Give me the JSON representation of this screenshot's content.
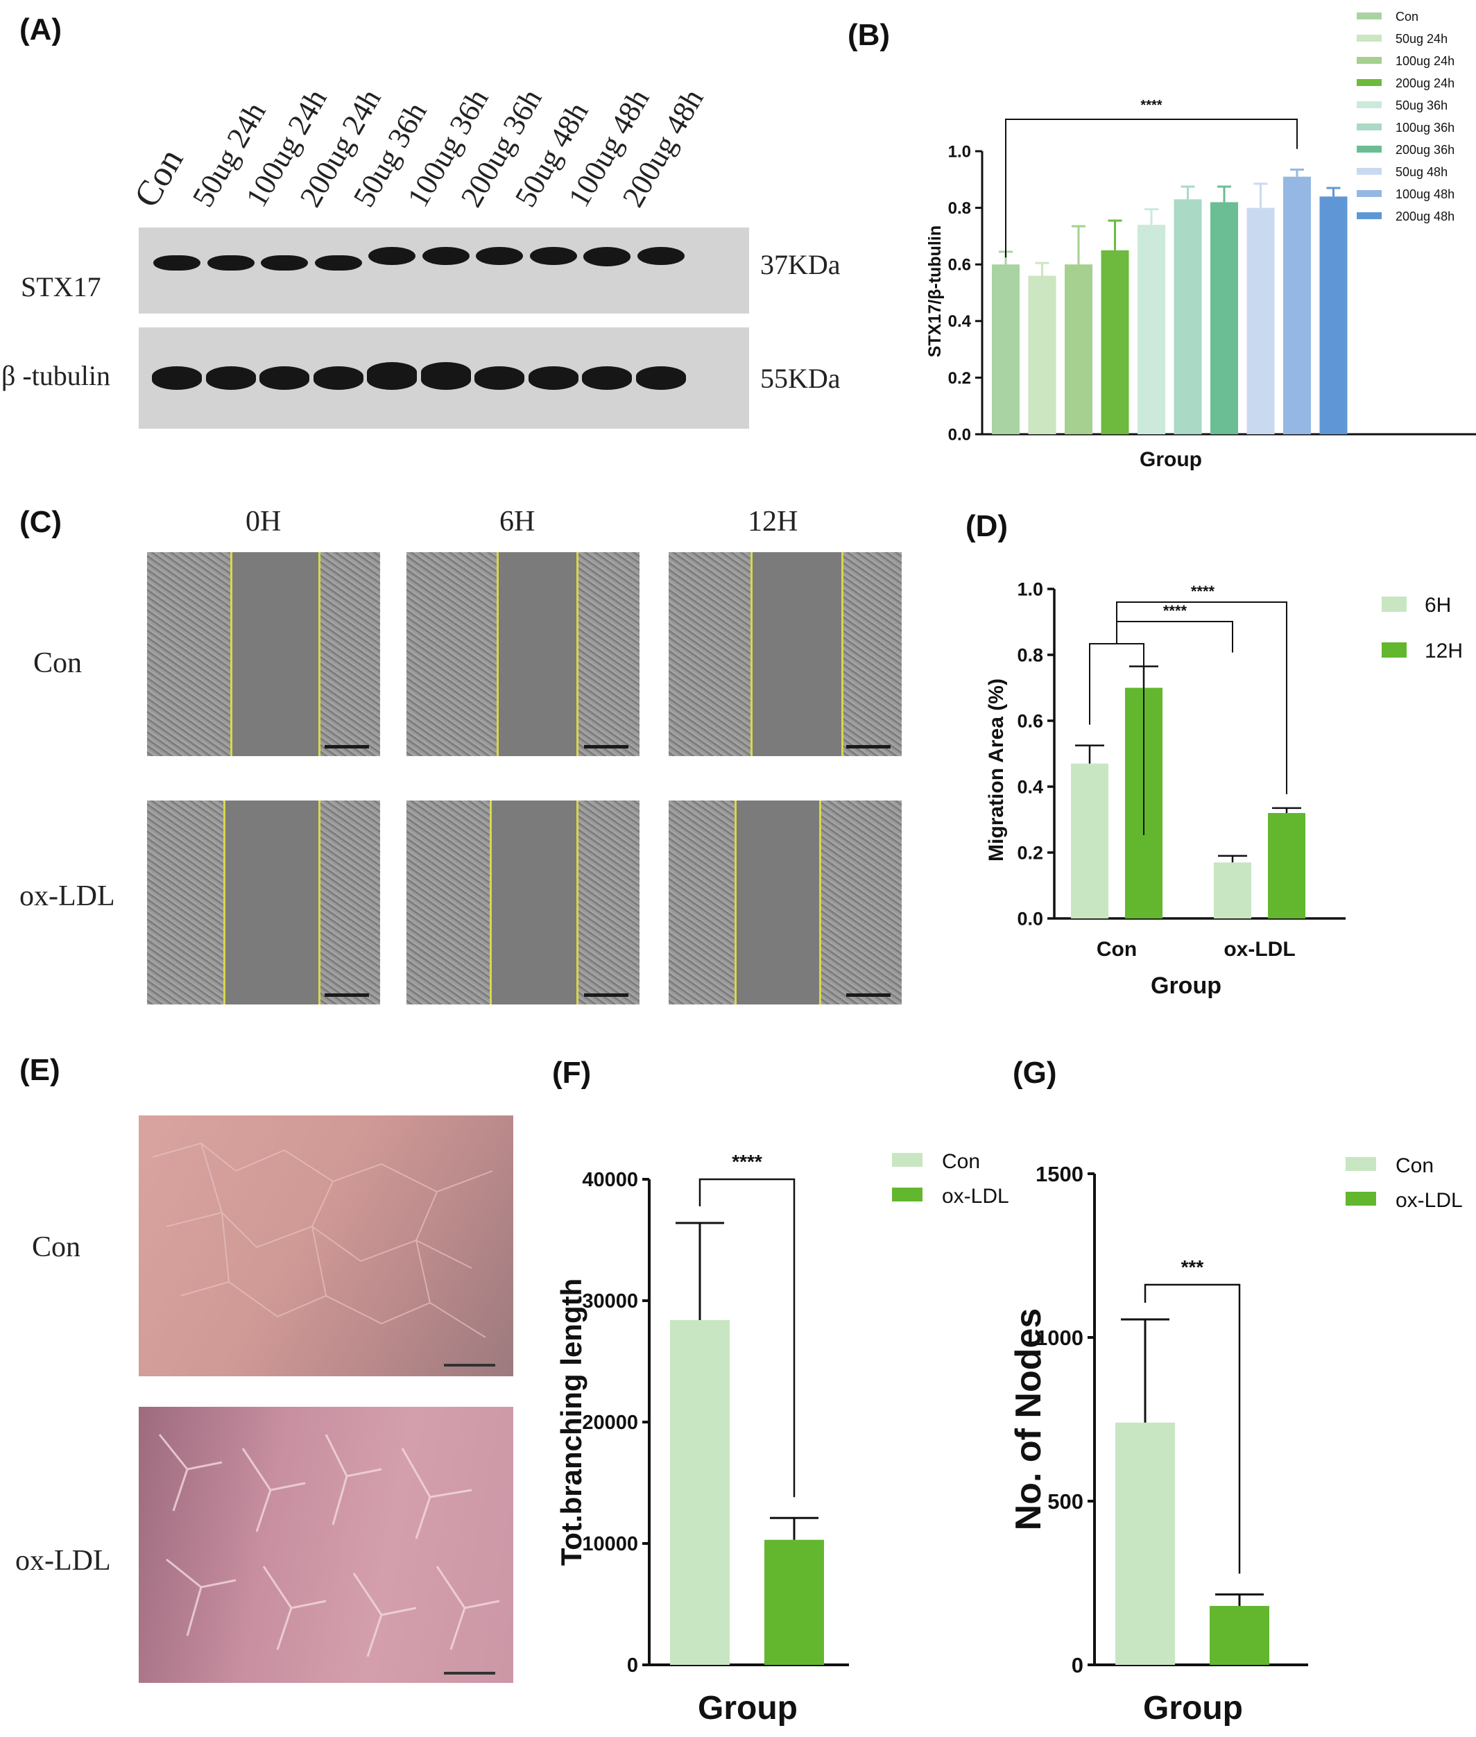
{
  "panel_labels": {
    "a": "(A)",
    "b": "(B)",
    "c": "(C)",
    "d": "(D)",
    "e": "(E)",
    "f": "(F)",
    "g": "(G)"
  },
  "blot": {
    "lanes": [
      "Con",
      "50ug 24h",
      "100ug 24h",
      "200ug 24h",
      "50ug 36h",
      "100ug 36h",
      "200ug 36h",
      "50ug 48h",
      "100ug 48h",
      "200ug 48h"
    ],
    "rows": [
      {
        "protein": "STX17",
        "size": "37KDa"
      },
      {
        "protein": "β -tubulin",
        "size": "55KDa"
      }
    ]
  },
  "scratch": {
    "columns": [
      "0H",
      "6H",
      "12H"
    ],
    "rows": [
      "Con",
      "ox-LDL"
    ]
  },
  "tube": {
    "rows": [
      "Con",
      "ox-LDL"
    ]
  },
  "chart_data": [
    {
      "id": "B",
      "type": "bar",
      "ylabel": "STX17/β-tubulin",
      "xlabel": "Group",
      "ylim": [
        0,
        1.0
      ],
      "yticks": [
        "0.0",
        "0.2",
        "0.4",
        "0.6",
        "0.8",
        "1.0"
      ],
      "legend_position": "top-right",
      "series": [
        {
          "name": "Con",
          "value": 0.6,
          "error": 0.045,
          "color": "#a9d3a2"
        },
        {
          "name": "50ug 24h",
          "value": 0.56,
          "error": 0.045,
          "color": "#cbe6c0"
        },
        {
          "name": "100ug 24h",
          "value": 0.6,
          "error": 0.135,
          "color": "#a5d08f"
        },
        {
          "name": "200ug 24h",
          "value": 0.65,
          "error": 0.105,
          "color": "#6dba3e"
        },
        {
          "name": "50ug 36h",
          "value": 0.74,
          "error": 0.055,
          "color": "#cbeadb"
        },
        {
          "name": "100ug 36h",
          "value": 0.83,
          "error": 0.045,
          "color": "#aad9c6"
        },
        {
          "name": "200ug 36h",
          "value": 0.82,
          "error": 0.055,
          "color": "#6bbe93"
        },
        {
          "name": "50ug 48h",
          "value": 0.8,
          "error": 0.085,
          "color": "#c9daf0"
        },
        {
          "name": "100ug 48h",
          "value": 0.91,
          "error": 0.025,
          "color": "#94b8e3"
        },
        {
          "name": "200ug 48h",
          "value": 0.84,
          "error": 0.03,
          "color": "#5f97d6"
        }
      ],
      "significance": [
        {
          "from": 0,
          "to": 8,
          "label": "****"
        }
      ]
    },
    {
      "id": "D",
      "type": "bar",
      "ylabel": "Migration Area (%)",
      "xlabel": "Group",
      "categories": [
        "Con",
        "ox-LDL"
      ],
      "ylim": [
        0,
        1.0
      ],
      "yticks": [
        "0.0",
        "0.2",
        "0.4",
        "0.6",
        "0.8",
        "1.0"
      ],
      "legend_position": "top-right",
      "series": [
        {
          "name": "6H",
          "values": [
            0.47,
            0.17
          ],
          "errors": [
            0.055,
            0.02
          ],
          "color": "#c8e6c2"
        },
        {
          "name": "12H",
          "values": [
            0.7,
            0.32
          ],
          "errors": [
            0.065,
            0.015
          ],
          "color": "#62b72f"
        }
      ],
      "significance": [
        {
          "label": "****"
        },
        {
          "label": "****"
        }
      ]
    },
    {
      "id": "F",
      "type": "bar",
      "ylabel": "Tot.branching length",
      "xlabel": "Group",
      "ylim": [
        0,
        40000
      ],
      "yticks": [
        "0",
        "10000",
        "20000",
        "30000",
        "40000"
      ],
      "legend_position": "top-right",
      "series": [
        {
          "name": "Con",
          "value": 28400,
          "error": 8000,
          "color": "#c8e6c2"
        },
        {
          "name": "ox-LDL",
          "value": 10300,
          "error": 1800,
          "color": "#62b72f"
        }
      ],
      "significance": [
        {
          "from": 0,
          "to": 1,
          "label": "****"
        }
      ]
    },
    {
      "id": "G",
      "type": "bar",
      "ylabel": "No. of Nodes",
      "xlabel": "Group",
      "ylim": [
        0,
        1500
      ],
      "yticks": [
        "0",
        "500",
        "1000",
        "1500"
      ],
      "legend_position": "top-right",
      "series": [
        {
          "name": "Con",
          "value": 740,
          "error": 315,
          "color": "#c8e6c2"
        },
        {
          "name": "ox-LDL",
          "value": 180,
          "error": 35,
          "color": "#62b72f"
        }
      ],
      "significance": [
        {
          "from": 0,
          "to": 1,
          "label": "***"
        }
      ]
    }
  ]
}
